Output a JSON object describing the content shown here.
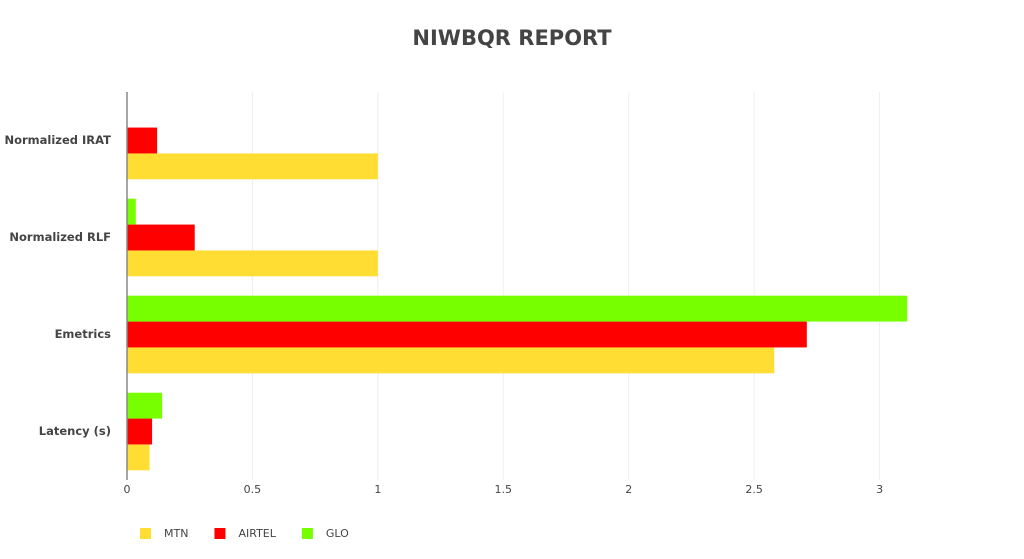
{
  "chart_data": {
    "type": "hbar",
    "title": "NIWBQR REPORT",
    "categories": [
      "Normalized IRAT",
      "Normalized RLF",
      "Emetrics",
      "Latency (s)"
    ],
    "series": [
      {
        "name": "MTN",
        "color": "#ffdd33",
        "values": [
          1,
          1,
          2.58,
          0.09
        ]
      },
      {
        "name": "AIRTEL",
        "color": "#ff0000",
        "values": [
          0.12,
          0.27,
          2.71,
          0.1
        ]
      },
      {
        "name": "GLO",
        "color": "#77ff00",
        "values": [
          0,
          0.035,
          3.11,
          0.14
        ]
      }
    ],
    "xlim": [
      0,
      3.5
    ],
    "xticks": [
      0,
      0.5,
      1,
      1.5,
      2,
      2.5,
      3
    ],
    "grid": true,
    "legend": "bottom"
  }
}
